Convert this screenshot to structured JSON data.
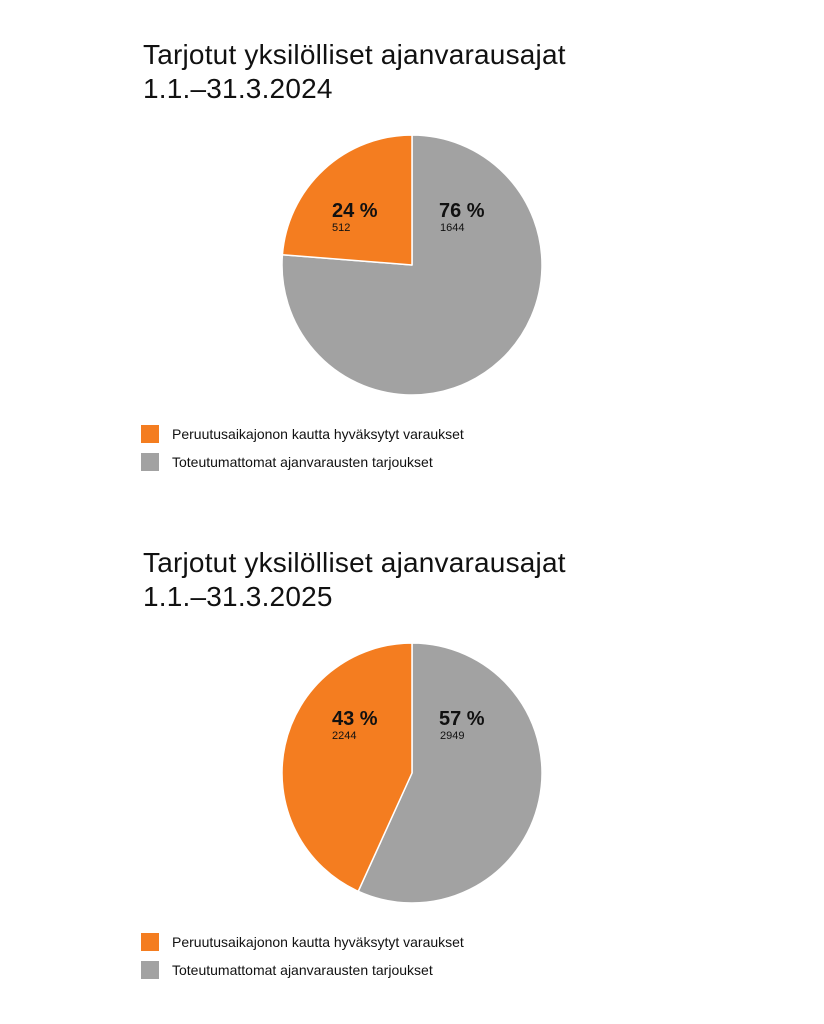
{
  "colors": {
    "orange": "#f47d20",
    "gray": "#a2a2a2"
  },
  "chart_data": [
    {
      "type": "pie",
      "title_lines": [
        "Tarjotut yksilölliset ajanvarausajat",
        "1.1.–31.3.2024"
      ],
      "slices": [
        {
          "label": "Toteutumattomat ajanvarausten tarjoukset",
          "percent_label": "76 %",
          "value": 1644,
          "value_label": "1644",
          "color": "#a2a2a2"
        },
        {
          "label": "Peruutusaikajonon kautta hyväksytyt varaukset",
          "percent_label": "24 %",
          "value": 512,
          "value_label": "512",
          "color": "#f47d20"
        }
      ],
      "legend": [
        {
          "label": "Peruutusaikajonon kautta hyväksytyt varaukset",
          "color": "#f47d20"
        },
        {
          "label": "Toteutumattomat ajanvarausten tarjoukset",
          "color": "#a2a2a2"
        }
      ]
    },
    {
      "type": "pie",
      "title_lines": [
        "Tarjotut yksilölliset ajanvarausajat",
        "1.1.–31.3.2025"
      ],
      "slices": [
        {
          "label": "Toteutumattomat ajanvarausten tarjoukset",
          "percent_label": "57 %",
          "value": 2949,
          "value_label": "2949",
          "color": "#a2a2a2"
        },
        {
          "label": "Peruutusaikajonon kautta hyväksytyt varaukset",
          "percent_label": "43 %",
          "value": 2244,
          "value_label": "2244",
          "color": "#f47d20"
        }
      ],
      "legend": [
        {
          "label": "Peruutusaikajonon kautta hyväksytyt varaukset",
          "color": "#f47d20"
        },
        {
          "label": "Toteutumattomat ajanvarausten tarjoukset",
          "color": "#a2a2a2"
        }
      ]
    }
  ]
}
